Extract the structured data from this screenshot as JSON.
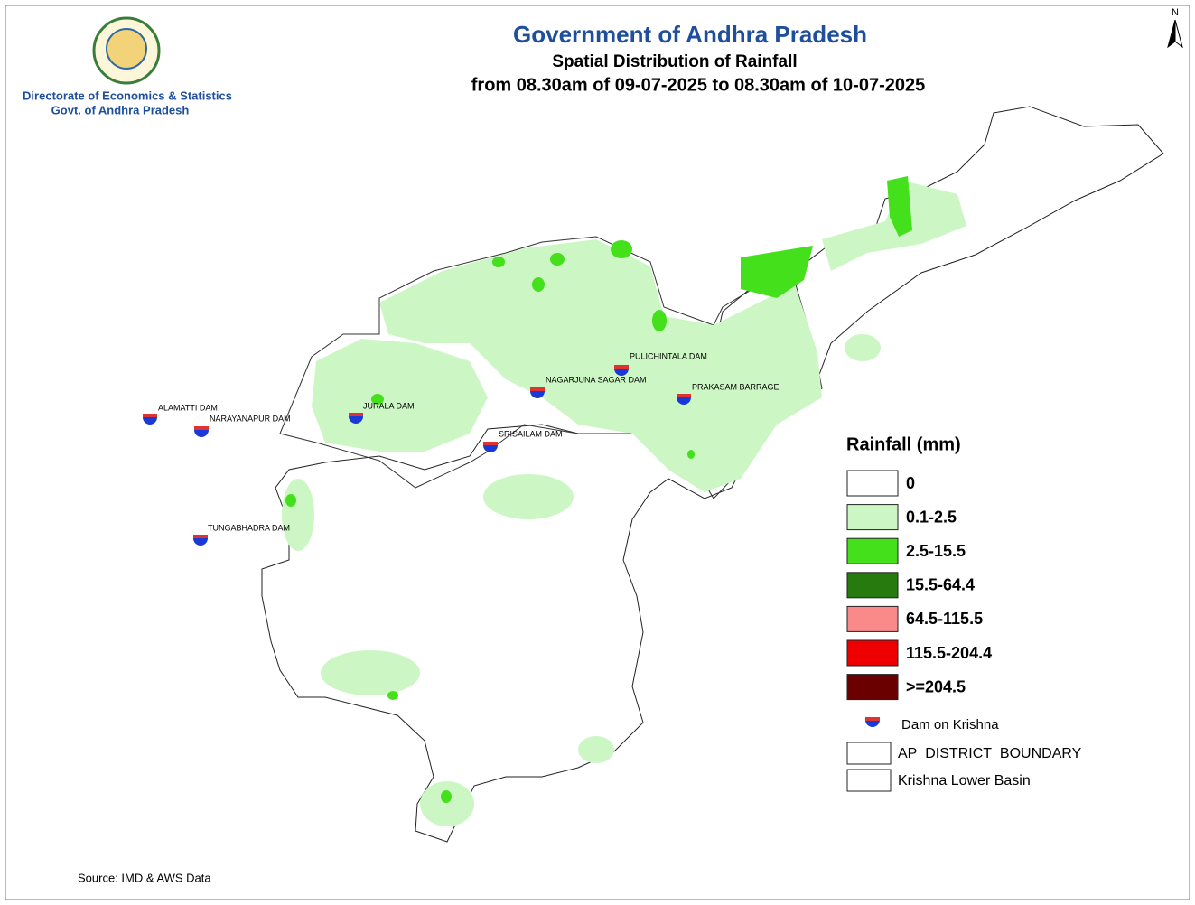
{
  "header": {
    "title": "Government of Andhra Pradesh",
    "subtitle": "Spatial Distribution of Rainfall",
    "period": "from 08.30am of 09-07-2025 to 08.30am of 10-07-2025",
    "org": "Directorate of Economics & Statistics",
    "org_sub": "Govt. of Andhra Pradesh"
  },
  "north": "N",
  "dams": [
    "ALAMATTI  DAM",
    "NARAYANAPUR DAM",
    "JURALA DAM",
    "SRISAILAM DAM",
    "NAGARJUNA SAGAR DAM",
    "PULICHINTALA DAM",
    "PRAKASAM BARRAGE",
    "TUNGABHADRA DAM"
  ],
  "legend": {
    "title": "Rainfall (mm)",
    "items": [
      {
        "label": "0",
        "color": "#ffffff"
      },
      {
        "label": "0.1-2.5",
        "color": "#ccf7c4"
      },
      {
        "label": "2.5-15.5",
        "color": "#44e01c"
      },
      {
        "label": "15.5-64.4",
        "color": "#267a0e"
      },
      {
        "label": "64.5-115.5",
        "color": "#fa8a8a"
      },
      {
        "label": "115.5-204.4",
        "color": "#ee0000"
      },
      {
        "label": ">=204.5",
        "color": "#6b0000"
      }
    ],
    "dam_label": "Dam on Krishna",
    "district_label": "AP_DISTRICT_BOUNDARY",
    "basin_label": "Krishna Lower Basin"
  },
  "source": "Source: IMD & AWS Data"
}
